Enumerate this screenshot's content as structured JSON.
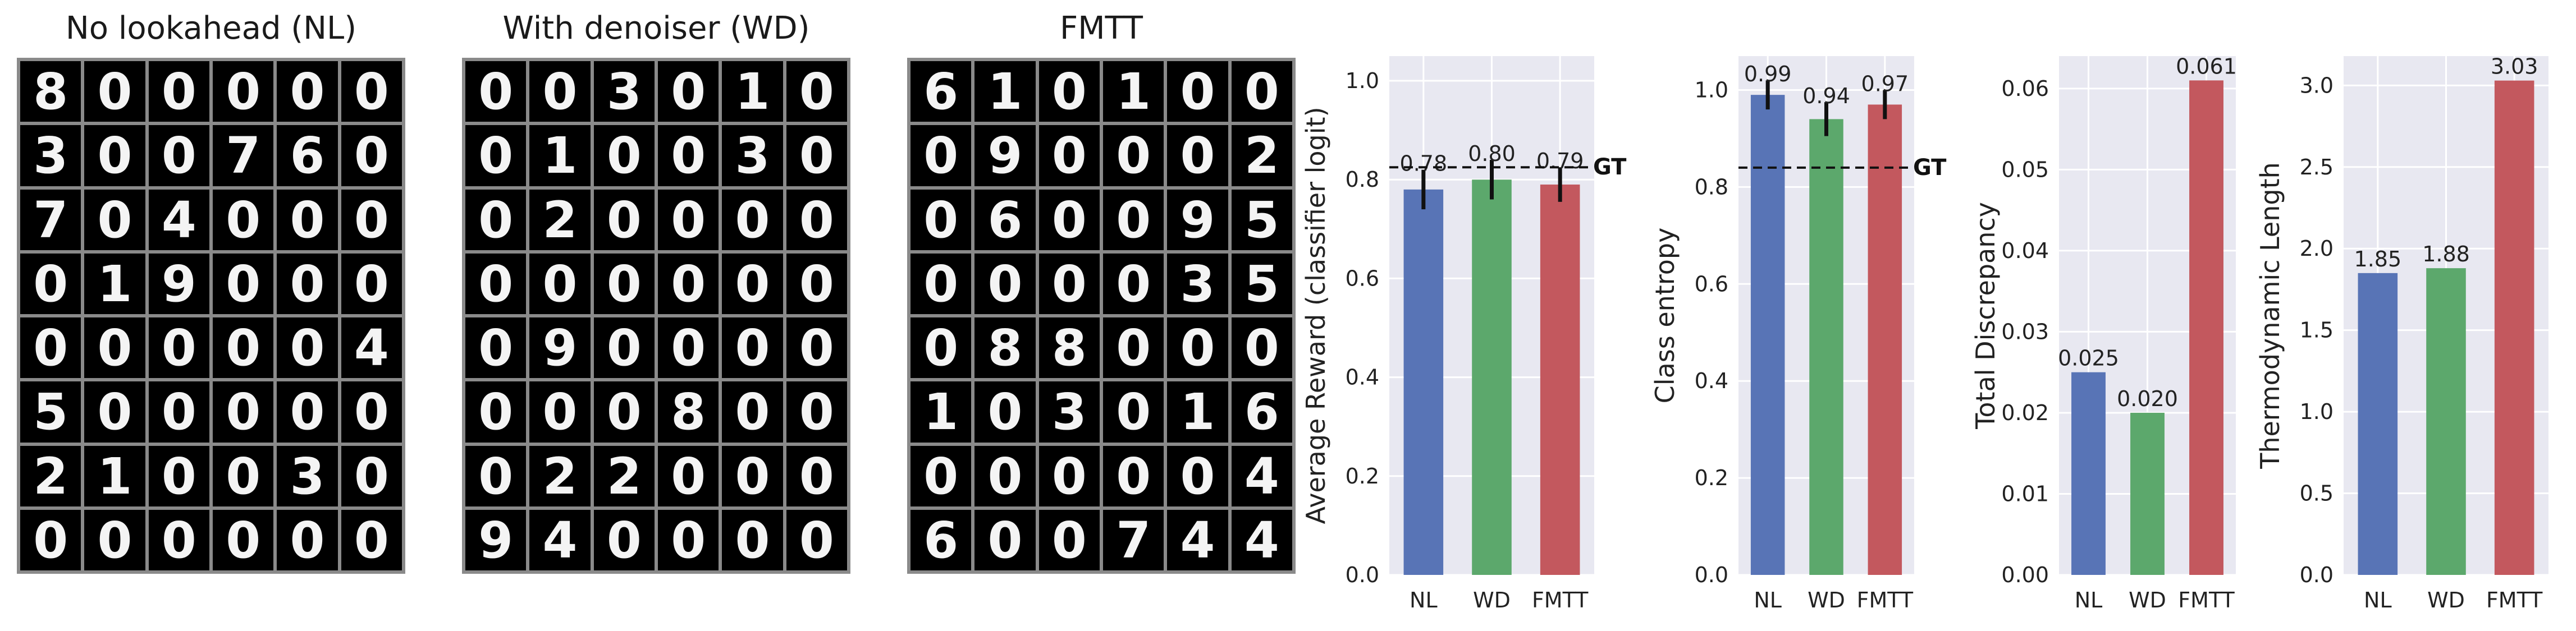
{
  "panels": [
    {
      "title": "No lookahead (NL)",
      "digits": [
        [
          "8",
          "0",
          "0",
          "0",
          "0",
          "0"
        ],
        [
          "3",
          "0",
          "0",
          "7",
          "6",
          "0"
        ],
        [
          "7",
          "0",
          "4",
          "0",
          "0",
          "0"
        ],
        [
          "0",
          "1",
          "9",
          "0",
          "0",
          "0"
        ],
        [
          "0",
          "0",
          "0",
          "0",
          "0",
          "4"
        ],
        [
          "5",
          "0",
          "0",
          "0",
          "0",
          "0"
        ],
        [
          "2",
          "1",
          "0",
          "0",
          "3",
          "0"
        ],
        [
          "0",
          "0",
          "0",
          "0",
          "0",
          "0"
        ]
      ]
    },
    {
      "title": "With denoiser (WD)",
      "digits": [
        [
          "0",
          "0",
          "3",
          "0",
          "1",
          "0"
        ],
        [
          "0",
          "1",
          "0",
          "0",
          "3",
          "0"
        ],
        [
          "0",
          "2",
          "0",
          "0",
          "0",
          "0"
        ],
        [
          "0",
          "0",
          "0",
          "0",
          "0",
          "0"
        ],
        [
          "0",
          "9",
          "0",
          "0",
          "0",
          "0"
        ],
        [
          "0",
          "0",
          "0",
          "8",
          "0",
          "0"
        ],
        [
          "0",
          "2",
          "2",
          "0",
          "0",
          "0"
        ],
        [
          "9",
          "4",
          "0",
          "0",
          "0",
          "0"
        ]
      ]
    },
    {
      "title": "FMTT",
      "digits": [
        [
          "6",
          "1",
          "0",
          "1",
          "0",
          "0"
        ],
        [
          "0",
          "9",
          "0",
          "0",
          "0",
          "2"
        ],
        [
          "0",
          "6",
          "0",
          "0",
          "9",
          "5"
        ],
        [
          "0",
          "0",
          "0",
          "0",
          "3",
          "5"
        ],
        [
          "0",
          "8",
          "8",
          "0",
          "0",
          "0"
        ],
        [
          "1",
          "0",
          "3",
          "0",
          "1",
          "6"
        ],
        [
          "0",
          "0",
          "0",
          "0",
          "0",
          "4"
        ],
        [
          "6",
          "0",
          "0",
          "7",
          "4",
          "4"
        ]
      ]
    }
  ],
  "chart_data": [
    {
      "type": "bar",
      "categories": [
        "NL",
        "WD",
        "FMTT"
      ],
      "values": [
        0.78,
        0.8,
        0.79
      ],
      "value_labels": [
        "0.78",
        "0.80",
        "0.79"
      ],
      "errors": [
        0.04,
        0.04,
        0.035
      ],
      "ylabel": "Average Reward (classifier logit)",
      "ylim": [
        0,
        1.05
      ],
      "yticks": [
        0.0,
        0.2,
        0.4,
        0.6,
        0.8,
        1.0
      ],
      "yticklabels": [
        "0.0",
        "0.2",
        "0.4",
        "0.6",
        "0.8",
        "1.0"
      ],
      "reference_line": {
        "value": 0.825,
        "label": "GT"
      },
      "grid": true
    },
    {
      "type": "bar",
      "categories": [
        "NL",
        "WD",
        "FMTT"
      ],
      "values": [
        0.99,
        0.94,
        0.97
      ],
      "value_labels": [
        "0.99",
        "0.94",
        "0.97"
      ],
      "errors": [
        0.03,
        0.035,
        0.03
      ],
      "ylabel": "Class entropy",
      "ylim": [
        0,
        1.07
      ],
      "yticks": [
        0.0,
        0.2,
        0.4,
        0.6,
        0.8,
        1.0
      ],
      "yticklabels": [
        "0.0",
        "0.2",
        "0.4",
        "0.6",
        "0.8",
        "1.0"
      ],
      "reference_line": {
        "value": 0.84,
        "label": "GT"
      },
      "grid": true
    },
    {
      "type": "bar",
      "categories": [
        "NL",
        "WD",
        "FMTT"
      ],
      "values": [
        0.025,
        0.02,
        0.061
      ],
      "value_labels": [
        "0.025",
        "0.020",
        "0.061"
      ],
      "ylabel": "Total Discrepancy",
      "ylim": [
        0,
        0.064
      ],
      "yticks": [
        0.0,
        0.01,
        0.02,
        0.03,
        0.04,
        0.05,
        0.06
      ],
      "yticklabels": [
        "0.00",
        "0.01",
        "0.02",
        "0.03",
        "0.04",
        "0.05",
        "0.06"
      ],
      "grid": true
    },
    {
      "type": "bar",
      "categories": [
        "NL",
        "WD",
        "FMTT"
      ],
      "values": [
        1.85,
        1.88,
        3.03
      ],
      "value_labels": [
        "1.85",
        "1.88",
        "3.03"
      ],
      "ylabel": "Thermodynamic Length",
      "ylim": [
        0,
        3.18
      ],
      "yticks": [
        0.0,
        0.5,
        1.0,
        1.5,
        2.0,
        2.5,
        3.0
      ],
      "yticklabels": [
        "0.0",
        "0.5",
        "1.0",
        "1.5",
        "2.0",
        "2.5",
        "3.0"
      ],
      "grid": true
    }
  ],
  "colors": {
    "NL": "#5874b6",
    "WD": "#5ca86c",
    "FMTT": "#c3585e",
    "panel_bg": "#e8e8f1",
    "grid": "#ffffff"
  }
}
